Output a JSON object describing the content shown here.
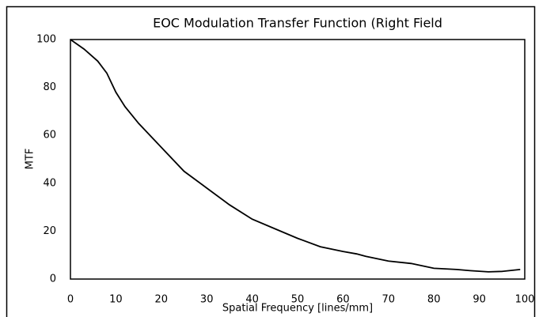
{
  "chart_data": {
    "type": "line",
    "title": "EOC Modulation Transfer Function (Right Field",
    "x_label": "Spatial Frequency [lines/mm]",
    "y_label": "MTF",
    "x": [
      0,
      3,
      6,
      8,
      10,
      12,
      15,
      20,
      25,
      30,
      35,
      40,
      45,
      50,
      55,
      60,
      63,
      65,
      70,
      75,
      80,
      85,
      88,
      92,
      95,
      99
    ],
    "series": [
      {
        "name": "MTF",
        "color": "#000000",
        "values": [
          100,
          96,
          91,
          86,
          78,
          72,
          65,
          55,
          45,
          38,
          31,
          25,
          21,
          17,
          13.5,
          11.5,
          10.5,
          9.5,
          7.5,
          6.5,
          4.5,
          4,
          3.5,
          3,
          3.2,
          4
        ]
      }
    ],
    "xlim": [
      0,
      100
    ],
    "xticks": [
      0,
      10,
      20,
      30,
      40,
      50,
      60,
      70,
      80,
      90,
      100
    ],
    "ylim": [
      0,
      100
    ],
    "yticks": [
      0,
      20,
      40,
      60,
      80,
      100
    ],
    "grid": false
  }
}
